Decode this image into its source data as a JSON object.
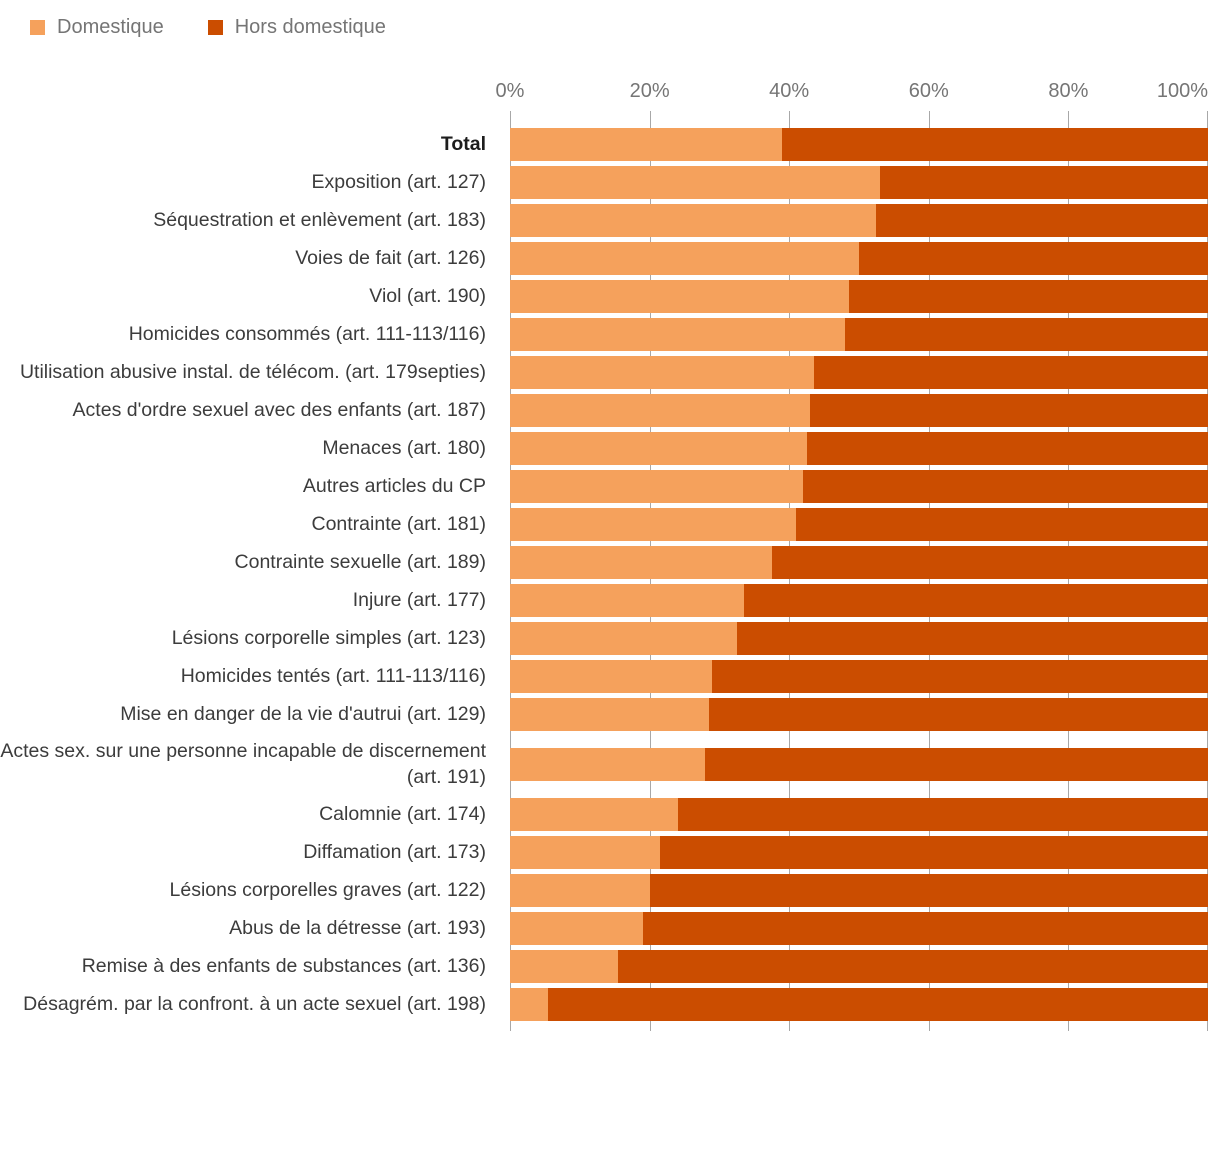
{
  "legend": {
    "items": [
      {
        "label": "Domestique",
        "color": "#F5A15C"
      },
      {
        "label": "Hors domestique",
        "color": "#CB4D00"
      }
    ]
  },
  "axis": {
    "ticks": [
      "0%",
      "20%",
      "40%",
      "60%",
      "80%",
      "100%"
    ]
  },
  "chart_data": {
    "type": "bar",
    "orientation": "horizontal",
    "stacked": true,
    "unit": "percent",
    "xlim": [
      0,
      100
    ],
    "grid": true,
    "legend_position": "top-left",
    "categories": [
      "Total",
      "Exposition (art. 127)",
      "Séquestration et enlèvement (art. 183)",
      "Voies de fait (art. 126)",
      "Viol (art. 190)",
      "Homicides consommés (art. 111-113/116)",
      "Utilisation abusive instal. de télécom. (art. 179septies)",
      "Actes d'ordre sexuel avec des enfants (art. 187)",
      "Menaces (art. 180)",
      "Autres articles du CP",
      "Contrainte (art. 181)",
      "Contrainte sexuelle (art. 189)",
      "Injure (art. 177)",
      "Lésions corporelle simples (art. 123)",
      "Homicides tentés (art. 111-113/116)",
      "Mise en danger de la vie d'autrui (art. 129)",
      "Actes sex. sur une personne incapable de discernement (art. 191)",
      "Calomnie (art. 174)",
      "Diffamation (art. 173)",
      "Lésions corporelles graves (art. 122)",
      "Abus de la détresse (art. 193)",
      "Remise à des enfants de substances (art. 136)",
      "Désagrém. par la confront. à un acte sexuel (art. 198)"
    ],
    "bold_categories": [
      "Total"
    ],
    "series": [
      {
        "name": "Domestique",
        "values": [
          39,
          53,
          52.5,
          50,
          48.5,
          48,
          43.5,
          43,
          42.5,
          42,
          41,
          37.5,
          33.5,
          32.5,
          29,
          28.5,
          28,
          24,
          21.5,
          20,
          19,
          15.5,
          5.5
        ]
      },
      {
        "name": "Hors domestique",
        "values": [
          61,
          47,
          47.5,
          50,
          51.5,
          52,
          56.5,
          57,
          57.5,
          58,
          59,
          62.5,
          66.5,
          67.5,
          71,
          71.5,
          72,
          76,
          78.5,
          80,
          81,
          84.5,
          94.5
        ]
      }
    ]
  }
}
